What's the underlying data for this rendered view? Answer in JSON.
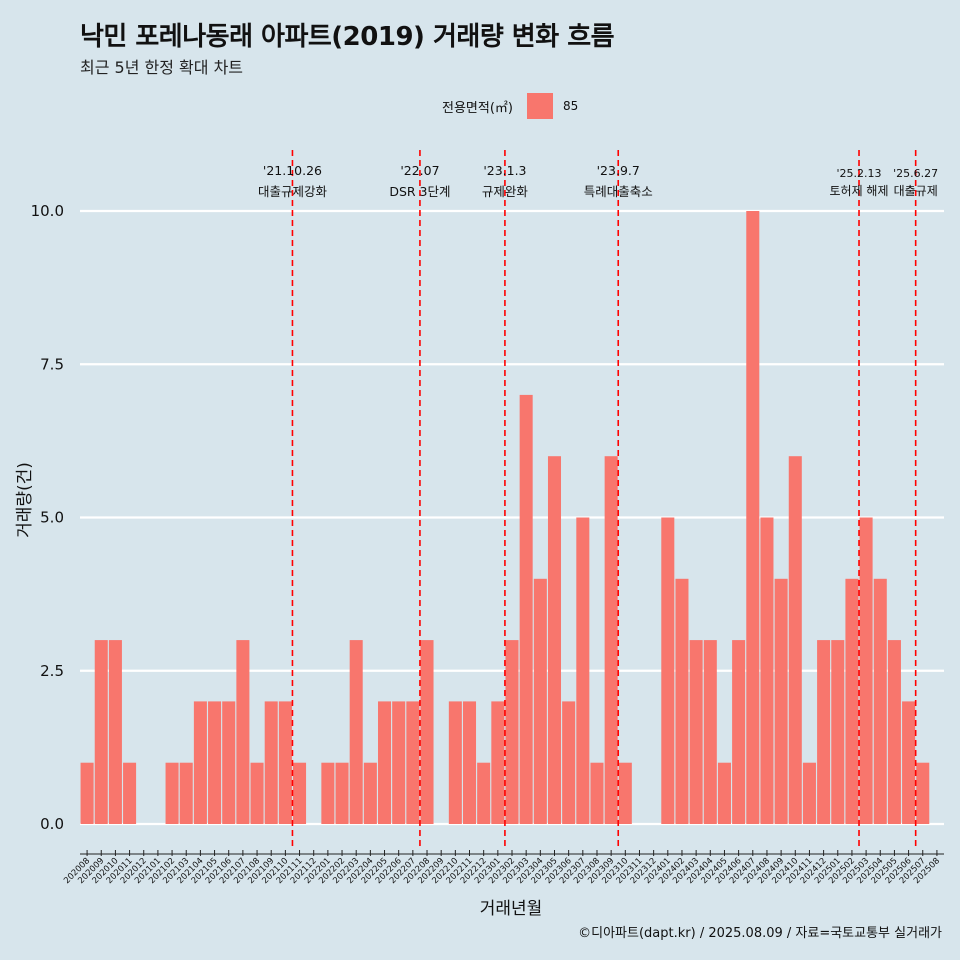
{
  "header": {
    "title": "낙민 포레나동래 아파트(2019) 거래량 변화 흐름",
    "subtitle": "최근 5년 한정 확대 차트"
  },
  "legend": {
    "title": "전용면적(㎡)",
    "label": "85"
  },
  "footer": {
    "source": "©디아파트(dapt.kr) / 2025.08.09 / 자료=국토교통부 실거래가"
  },
  "colors": {
    "bar": "#f8766d",
    "background": "#d7e5ec",
    "grid": "#ffffff",
    "event_line": "#ff0000"
  },
  "chart_data": {
    "type": "bar",
    "xlabel": "거래년월",
    "ylabel": "거래량(건)",
    "ylim": [
      -0.4,
      10.3
    ],
    "yticks": [
      0,
      2.5,
      5,
      7.5,
      10
    ],
    "ytick_labels": [
      "0.0",
      "2.5",
      "5.0",
      "7.5",
      "10.0"
    ],
    "grid": true,
    "legend_position": "top",
    "categories": [
      "202008",
      "202009",
      "202010",
      "202011",
      "202012",
      "202101",
      "202102",
      "202103",
      "202104",
      "202105",
      "202106",
      "202107",
      "202108",
      "202109",
      "202110",
      "202111",
      "202112",
      "202201",
      "202202",
      "202203",
      "202204",
      "202205",
      "202206",
      "202207",
      "202208",
      "202209",
      "202210",
      "202211",
      "202212",
      "202301",
      "202302",
      "202303",
      "202304",
      "202305",
      "202306",
      "202307",
      "202308",
      "202309",
      "202310",
      "202311",
      "202312",
      "202401",
      "202402",
      "202403",
      "202404",
      "202405",
      "202406",
      "202407",
      "202408",
      "202409",
      "202410",
      "202411",
      "202412",
      "202501",
      "202502",
      "202503",
      "202504",
      "202505",
      "202506",
      "202507",
      "202508"
    ],
    "series": [
      {
        "name": "85",
        "values": [
          1,
          3,
          3,
          1,
          0,
          0,
          1,
          1,
          2,
          2,
          2,
          3,
          1,
          2,
          2,
          1,
          0,
          1,
          1,
          3,
          1,
          2,
          2,
          2,
          3,
          0,
          2,
          2,
          1,
          2,
          3,
          7,
          4,
          6,
          2,
          5,
          1,
          6,
          1,
          0,
          0,
          5,
          4,
          3,
          3,
          1,
          3,
          10,
          5,
          4,
          6,
          1,
          3,
          3,
          4,
          5,
          4,
          3,
          2,
          1,
          0
        ]
      }
    ],
    "events": [
      {
        "date": "'21.10.26",
        "label": "대출규제강화",
        "x_index": 14.5
      },
      {
        "date": "'22.07",
        "label": "DSR 3단계",
        "x_index": 23.5
      },
      {
        "date": "'23.1.3",
        "label": "규제완화",
        "x_index": 29.5
      },
      {
        "date": "'23.9.7",
        "label": "특례대출축소",
        "x_index": 37.5
      },
      {
        "date": "'25.2.13",
        "label": "토허제 해제",
        "x_index": 54.5
      },
      {
        "date": "'25.6.27",
        "label": "대출규제",
        "x_index": 58.5
      }
    ]
  }
}
